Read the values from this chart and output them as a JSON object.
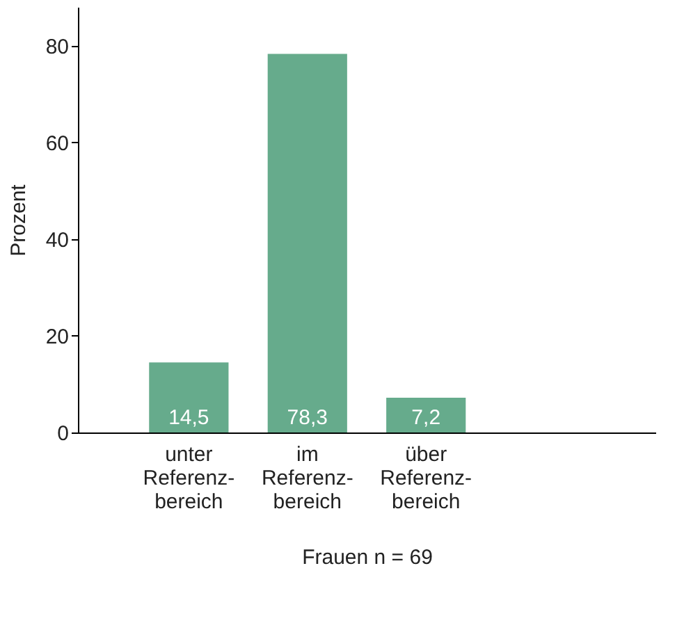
{
  "chart_data": {
    "type": "bar",
    "xlabel": "Frauen n = 69",
    "ylabel": "Prozent",
    "categories": [
      "unter\nReferenz-\nbereich",
      "im\nReferenz-\nbereich",
      "über\nReferenz-\nbereich",
      null
    ],
    "values": [
      14.5,
      78.3,
      7.2,
      null
    ],
    "value_labels": [
      "14,5",
      "78,3",
      "7,2",
      null
    ],
    "color": "#66ab8c",
    "ylim": [
      0,
      88
    ],
    "yticks": [
      0,
      20,
      40,
      60,
      80
    ],
    "grid": false
  }
}
